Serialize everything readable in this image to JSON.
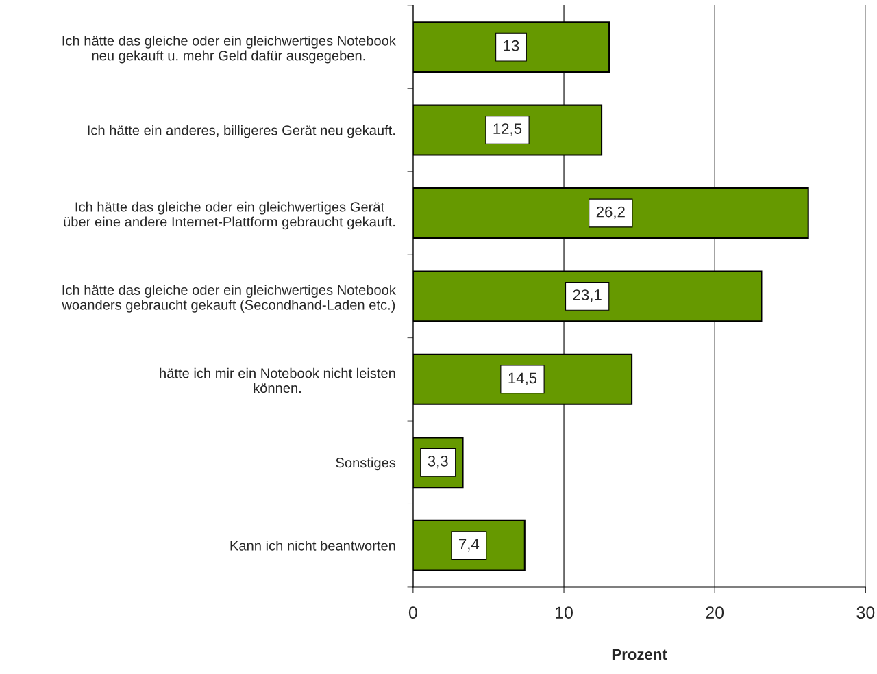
{
  "chart_data": {
    "type": "bar",
    "orientation": "horizontal",
    "xlabel": "Prozent",
    "categories": [
      "Ich hätte das gleiche oder ein gleichwertiges Notebook\nneu gekauft u. mehr Geld dafür ausgegeben.",
      "Ich hätte ein anderes, billigeres Gerät neu gekauft.",
      "Ich hätte das gleiche oder ein gleichwertiges Gerät\nüber eine andere Internet-Plattform gebraucht gekauft.",
      "Ich hätte das gleiche oder ein gleichwertiges Notebook\nwoanders gebraucht gekauft (Secondhand-Laden etc.)",
      "hätte ich mir ein Notebook nicht leisten\nkönnen.",
      "Sonstiges",
      "Kann ich nicht beantworten"
    ],
    "values": [
      13,
      12.5,
      26.2,
      23.1,
      14.5,
      3.3,
      7.4
    ],
    "value_labels": [
      "13",
      "12,5",
      "26,2",
      "23,1",
      "14,5",
      "3,3",
      "7,4"
    ],
    "color": "#669900",
    "xlim": [
      0,
      30
    ],
    "xticks": [
      0,
      10,
      20,
      30
    ],
    "grid": "x",
    "legend": false
  }
}
